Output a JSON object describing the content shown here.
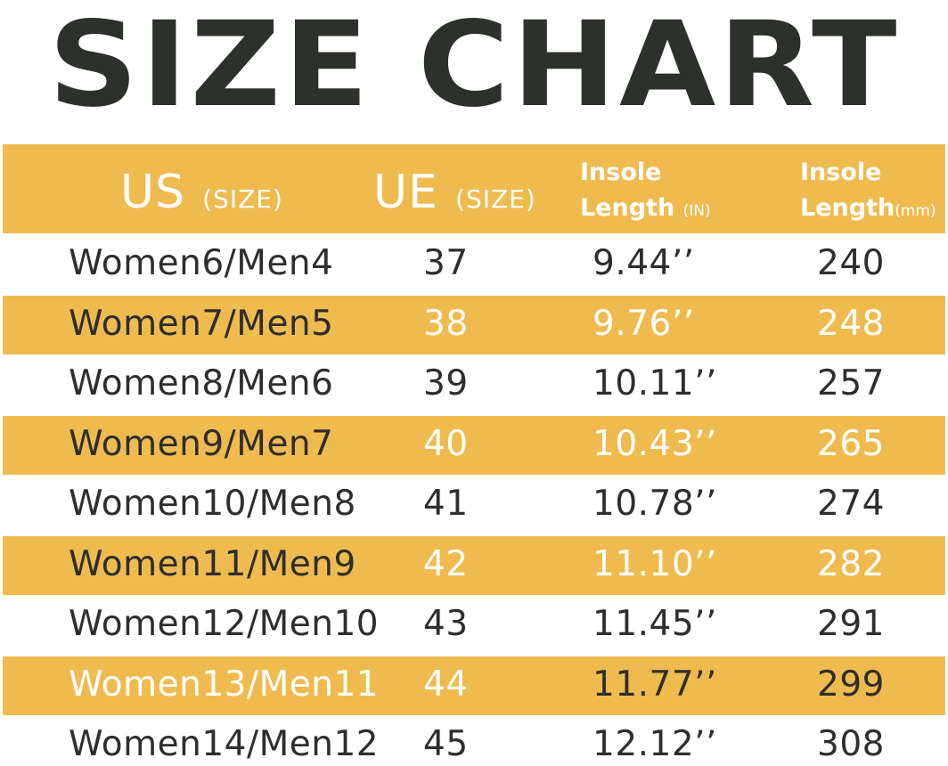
{
  "title": "SIZE CHART",
  "colors": {
    "accent": "#efbb4f",
    "title": "#2d312b",
    "text": "#2e2e2e",
    "header_text": "#ffffff"
  },
  "chart_data": {
    "type": "table",
    "title": "SIZE CHART",
    "columns": [
      {
        "label": "US",
        "note": "(SIZE)"
      },
      {
        "label": "UE",
        "note": "(SIZE)"
      },
      {
        "label": "Insole",
        "label2": "Length",
        "note": "(IN)"
      },
      {
        "label": "Insole",
        "label2": "Length",
        "note": "(mm)"
      }
    ],
    "rows": [
      {
        "us": "Women6/Men4",
        "ue": "37",
        "inch": "9.44’’",
        "mm": "240"
      },
      {
        "us": "Women7/Men5",
        "ue": "38",
        "inch": "9.76’’",
        "mm": "248"
      },
      {
        "us": "Women8/Men6",
        "ue": "39",
        "inch": "10.11’’",
        "mm": "257"
      },
      {
        "us": "Women9/Men7",
        "ue": "40",
        "inch": "10.43’’",
        "mm": "265"
      },
      {
        "us": "Women10/Men8",
        "ue": "41",
        "inch": "10.78’’",
        "mm": "274"
      },
      {
        "us": "Women11/Men9",
        "ue": "42",
        "inch": "11.10’’",
        "mm": "282"
      },
      {
        "us": "Women12/Men10",
        "ue": "43",
        "inch": "11.45’’",
        "mm": "291"
      },
      {
        "us": "Women13/Men11",
        "ue": "44",
        "inch": "11.77’’",
        "mm": "299"
      },
      {
        "us": "Women14/Men12",
        "ue": "45",
        "inch": "12.12’’",
        "mm": "308"
      }
    ]
  }
}
